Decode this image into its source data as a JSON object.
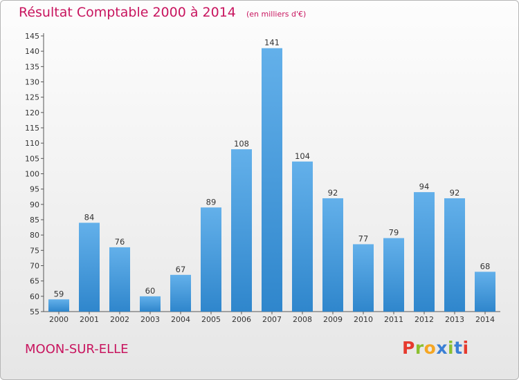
{
  "header": {
    "title": "Résultat Comptable 2000 à 2014",
    "unit": "(en milliers d'€)"
  },
  "footer": {
    "commune": "MOON-SUR-ELLE",
    "logo": "Proxiti"
  },
  "colors": {
    "title": "#c8145e",
    "bar_light": "#63b0ea",
    "bar_dark": "#2f86cc",
    "logo_letters": [
      "#e63a2e",
      "#8bbf2f",
      "#f5a623",
      "#3a7fd5",
      "#8bbf2f",
      "#3a7fd5",
      "#e63a2e"
    ]
  },
  "chart_data": {
    "type": "bar",
    "title": "Résultat Comptable 2000 à 2014",
    "subtitle": "(en milliers d'€)",
    "xlabel": "",
    "ylabel": "",
    "categories": [
      "2000",
      "2001",
      "2002",
      "2003",
      "2004",
      "2005",
      "2006",
      "2007",
      "2008",
      "2009",
      "2010",
      "2011",
      "2012",
      "2013",
      "2014"
    ],
    "values": [
      59,
      84,
      76,
      60,
      67,
      89,
      108,
      141,
      104,
      92,
      77,
      79,
      94,
      92,
      68
    ],
    "ylim": [
      55,
      145
    ],
    "yticks": [
      55,
      60,
      65,
      70,
      75,
      80,
      85,
      90,
      95,
      100,
      105,
      110,
      115,
      120,
      125,
      130,
      135,
      140,
      145
    ],
    "grid": false,
    "legend": "none"
  }
}
